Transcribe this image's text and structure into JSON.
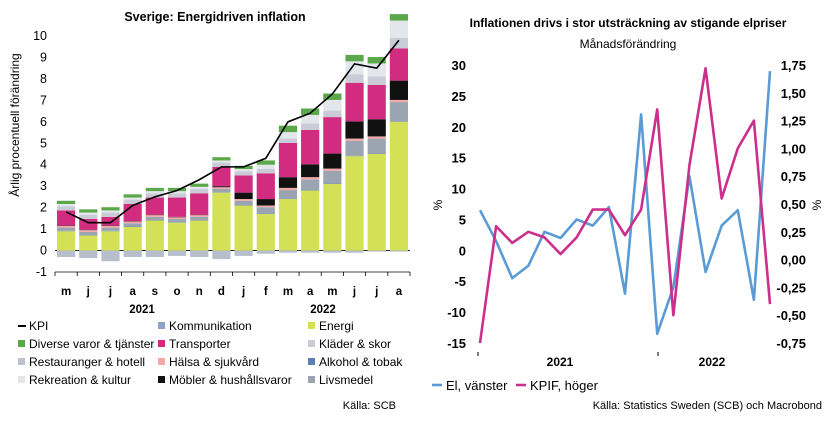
{
  "chart_data": [
    {
      "type": "bar",
      "title": "Sverige: Energidriven inflation",
      "ylabel": "Årlig procentuell förändring",
      "xlabel": "",
      "ylim": [
        -1,
        10
      ],
      "yticks": [
        "-1",
        "0",
        "1",
        "2",
        "3",
        "4",
        "5",
        "6",
        "7",
        "8",
        "9",
        "10"
      ],
      "categories": [
        "m",
        "j",
        "j",
        "a",
        "s",
        "o",
        "n",
        "d",
        "j",
        "f",
        "m",
        "a",
        "m",
        "j",
        "j",
        "a"
      ],
      "year_labels": [
        "2021",
        "2022"
      ],
      "source": "Källa: SCB",
      "series": [
        {
          "name": "Energi",
          "color": "#d4e157",
          "values": [
            0.9,
            0.7,
            0.9,
            1.1,
            1.4,
            1.3,
            1.4,
            2.7,
            2.1,
            1.7,
            2.4,
            2.8,
            3.1,
            4.4,
            4.5,
            6.0
          ]
        },
        {
          "name": "Alkohol & tobak",
          "color": "#5b7fb0",
          "values": [
            0.02,
            0.02,
            0.02,
            0.02,
            0.02,
            0.02,
            0.02,
            0.02,
            0.02,
            0.02,
            0.02,
            0.02,
            0.02,
            0.02,
            0.02,
            0.02
          ]
        },
        {
          "name": "Livsmedel",
          "color": "#9aa5b1",
          "values": [
            0.15,
            0.15,
            0.15,
            0.15,
            0.15,
            0.15,
            0.15,
            0.15,
            0.2,
            0.3,
            0.4,
            0.5,
            0.6,
            0.7,
            0.7,
            0.9
          ]
        },
        {
          "name": "Hälsa & sjukvård",
          "color": "#f4a9a8",
          "values": [
            0.08,
            0.08,
            0.08,
            0.08,
            0.08,
            0.08,
            0.08,
            0.08,
            0.08,
            0.08,
            0.1,
            0.1,
            0.1,
            0.1,
            0.1,
            0.1
          ]
        },
        {
          "name": "Möbler & hushållsvaror",
          "color": "#111111",
          "values": [
            0.02,
            0.02,
            0.02,
            0.02,
            0.02,
            0.02,
            0.02,
            0.05,
            0.3,
            0.3,
            0.5,
            0.6,
            0.7,
            0.8,
            0.8,
            0.9
          ]
        },
        {
          "name": "Transporter",
          "color": "#d12c7f",
          "values": [
            0.7,
            0.5,
            0.4,
            0.8,
            0.8,
            0.9,
            1.0,
            0.9,
            0.8,
            1.2,
            1.6,
            1.6,
            1.7,
            1.8,
            1.6,
            1.5
          ]
        },
        {
          "name": "Kläder & skor",
          "color": "#c9ccd6",
          "values": [
            0.2,
            0.2,
            0.2,
            0.2,
            0.2,
            0.2,
            0.2,
            0.2,
            0.2,
            0.2,
            0.2,
            0.3,
            0.3,
            0.4,
            0.4,
            0.5
          ]
        },
        {
          "name": "Rekreation & kultur",
          "color": "#e3e6eb",
          "values": [
            0.1,
            0.1,
            0.1,
            0.1,
            0.1,
            0.1,
            0.1,
            0.1,
            0.1,
            0.2,
            0.3,
            0.4,
            0.5,
            0.6,
            0.6,
            0.8
          ]
        },
        {
          "name": "Diverse varor & tjänster",
          "color": "#5aa84a",
          "values": [
            0.15,
            0.15,
            0.15,
            0.15,
            0.15,
            0.15,
            0.15,
            0.15,
            0.15,
            0.2,
            0.3,
            0.3,
            0.3,
            0.3,
            0.3,
            0.3
          ]
        }
      ],
      "negatives": {
        "values": [
          -0.3,
          -0.35,
          -0.5,
          -0.3,
          -0.3,
          -0.25,
          -0.3,
          -0.4,
          -0.25,
          -0.15,
          -0.1,
          -0.1,
          -0.1,
          -0.1,
          -0.05,
          -0.05
        ]
      },
      "line": {
        "name": "KPI",
        "color": "#000000",
        "values": [
          1.8,
          1.3,
          1.3,
          2.1,
          2.5,
          2.8,
          3.3,
          3.9,
          3.9,
          4.3,
          6.0,
          6.4,
          7.3,
          8.7,
          8.5,
          9.8
        ]
      },
      "legend": [
        {
          "name": "KPI",
          "marker": "line",
          "color": "#000000"
        },
        {
          "name": "Kommunikation",
          "marker": "box",
          "color": "#8fa3c8"
        },
        {
          "name": "Energi",
          "marker": "box",
          "color": "#d4e157"
        },
        {
          "name": "Diverse varor & tjänster",
          "marker": "box",
          "color": "#5aa84a"
        },
        {
          "name": "Transporter",
          "marker": "box",
          "color": "#d12c7f"
        },
        {
          "name": "Kläder & skor",
          "marker": "box",
          "color": "#c9ccd6"
        },
        {
          "name": "Restauranger & hotell",
          "marker": "box",
          "color": "#bcc3cf"
        },
        {
          "name": "Hälsa & sjukvård",
          "marker": "box",
          "color": "#f4a9a8"
        },
        {
          "name": "Alkohol & tobak",
          "marker": "box",
          "color": "#5b7fb0"
        },
        {
          "name": "Rekreation & kultur",
          "marker": "box",
          "color": "#e3e6eb"
        },
        {
          "name": "Möbler & hushållsvaror",
          "marker": "box",
          "color": "#111111"
        },
        {
          "name": "Livsmedel",
          "marker": "box",
          "color": "#9aa5b1"
        }
      ]
    },
    {
      "type": "line",
      "title": "Inflationen drivs i stor utsträckning av stigande elpriser",
      "subtitle": "Månadsförändring",
      "ylabel_left": "%",
      "ylabel_right": "%",
      "ylim_left": [
        -15,
        30
      ],
      "ylim_right": [
        -0.75,
        1.75
      ],
      "yticks_left": [
        "-15",
        "-10",
        "-5",
        "0",
        "5",
        "10",
        "15",
        "20",
        "25",
        "30"
      ],
      "yticks_right": [
        "-0,75",
        "-0,50",
        "-0,25",
        "0,00",
        "0,25",
        "0,50",
        "0,75",
        "1,00",
        "1,25",
        "1,50",
        "1,75"
      ],
      "year_labels": [
        "2021",
        "2022"
      ],
      "source": "Källa: Statistics Sweden (SCB) och Macrobond",
      "series": [
        {
          "name": "El, vänster",
          "axis": "left",
          "color": "#5b9bd5",
          "values": [
            6.5,
            1.5,
            -4.5,
            -2.5,
            3,
            2,
            5,
            4,
            7,
            -7,
            22,
            -13.5,
            -6,
            12,
            -3.5,
            4,
            6.5,
            -8,
            29
          ]
        },
        {
          "name": "KPIF, höger",
          "axis": "right",
          "color": "#cc2e8c",
          "values": [
            -0.75,
            0.3,
            0.15,
            0.25,
            0.2,
            0.05,
            0.2,
            0.45,
            0.45,
            0.22,
            0.45,
            1.35,
            -0.5,
            0.85,
            1.72,
            0.55,
            1.0,
            1.25,
            -0.4
          ]
        }
      ]
    }
  ]
}
